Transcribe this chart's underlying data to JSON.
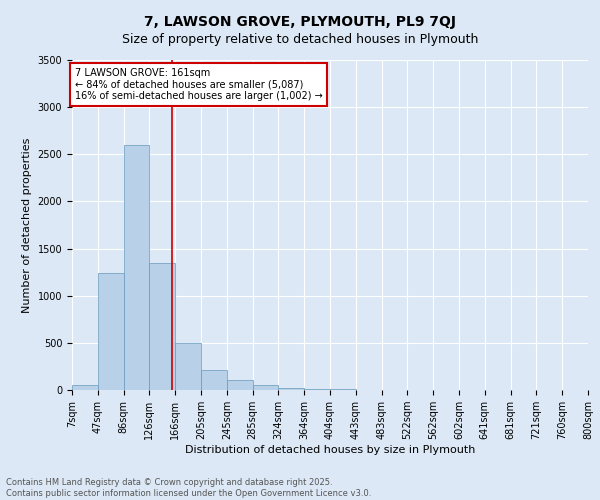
{
  "title": "7, LAWSON GROVE, PLYMOUTH, PL9 7QJ",
  "subtitle": "Size of property relative to detached houses in Plymouth",
  "xlabel": "Distribution of detached houses by size in Plymouth",
  "ylabel": "Number of detached properties",
  "background_color": "#dce8f5",
  "bar_color": "#b8d0e8",
  "bar_edge_color": "#6699bb",
  "bin_edges": [
    7,
    47,
    86,
    126,
    166,
    205,
    245,
    285,
    324,
    364,
    404,
    443,
    483,
    522,
    562,
    602,
    641,
    681,
    721,
    760,
    800
  ],
  "bin_labels": [
    "7sqm",
    "47sqm",
    "86sqm",
    "126sqm",
    "166sqm",
    "205sqm",
    "245sqm",
    "285sqm",
    "324sqm",
    "364sqm",
    "404sqm",
    "443sqm",
    "483sqm",
    "522sqm",
    "562sqm",
    "602sqm",
    "641sqm",
    "681sqm",
    "721sqm",
    "760sqm",
    "800sqm"
  ],
  "counts": [
    55,
    1240,
    2600,
    1350,
    500,
    215,
    105,
    55,
    20,
    10,
    8,
    5,
    3,
    1,
    1,
    0,
    0,
    0,
    0,
    0
  ],
  "ylim": [
    0,
    3500
  ],
  "yticks": [
    0,
    500,
    1000,
    1500,
    2000,
    2500,
    3000,
    3500
  ],
  "property_line_x": 161,
  "annotation_title": "7 LAWSON GROVE: 161sqm",
  "annotation_line1": "← 84% of detached houses are smaller (5,087)",
  "annotation_line2": "16% of semi-detached houses are larger (1,002) →",
  "annotation_box_color": "#ffffff",
  "annotation_box_edge_color": "#cc0000",
  "annotation_text_color": "#000000",
  "vline_color": "#cc0000",
  "footer_line1": "Contains HM Land Registry data © Crown copyright and database right 2025.",
  "footer_line2": "Contains public sector information licensed under the Open Government Licence v3.0.",
  "grid_color": "#ffffff",
  "title_fontsize": 10,
  "subtitle_fontsize": 9,
  "axis_label_fontsize": 8,
  "tick_fontsize": 7,
  "annotation_fontsize": 7,
  "footer_fontsize": 6
}
